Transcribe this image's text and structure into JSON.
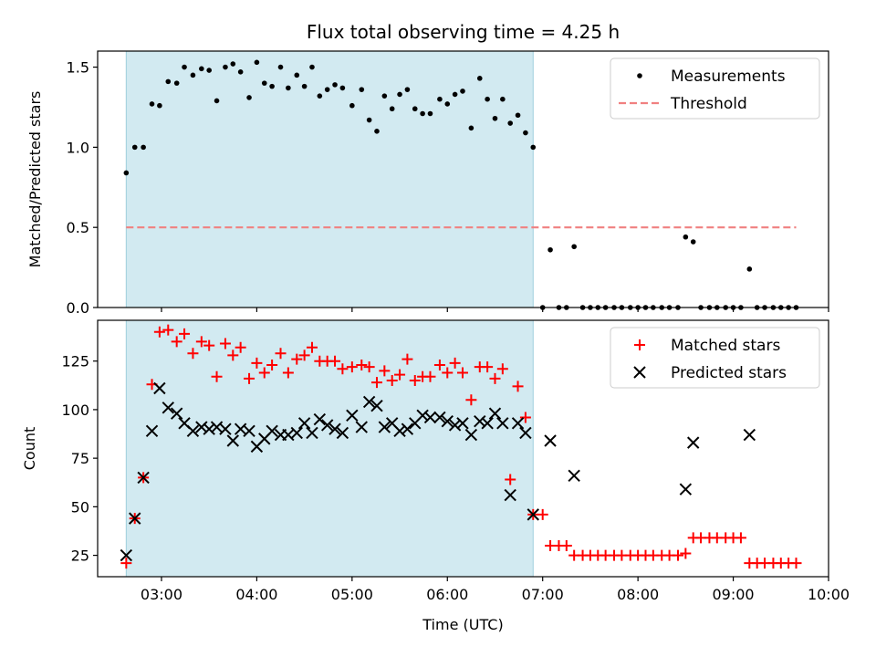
{
  "title": "Flux total observing time = 4.25 h",
  "chart_data": [
    {
      "type": "scatter",
      "ylabel": "Matched/Predicted stars",
      "xlabel": "",
      "ylim": [
        0,
        1.6
      ],
      "yticks": [
        0.0,
        0.5,
        1.0,
        1.5
      ],
      "ytick_labels": [
        "0.0",
        "0.5",
        "1.0",
        "1.5"
      ],
      "legend": "top-right",
      "shaded_span": [
        2.63,
        6.9
      ],
      "shade_color": "#add8e6",
      "series": [
        {
          "name": "Measurements",
          "marker": "dot",
          "color": "#000000",
          "x": [
            2.63,
            2.72,
            2.81,
            2.9,
            2.98,
            3.07,
            3.16,
            3.24,
            3.33,
            3.42,
            3.5,
            3.58,
            3.67,
            3.75,
            3.83,
            3.92,
            4.0,
            4.08,
            4.16,
            4.25,
            4.33,
            4.42,
            4.5,
            4.58,
            4.66,
            4.74,
            4.82,
            4.9,
            5.0,
            5.1,
            5.18,
            5.26,
            5.34,
            5.42,
            5.5,
            5.58,
            5.66,
            5.74,
            5.82,
            5.92,
            6.0,
            6.08,
            6.16,
            6.25,
            6.34,
            6.42,
            6.5,
            6.58,
            6.66,
            6.74,
            6.82,
            6.9,
            7.0,
            7.08,
            7.17,
            7.25,
            7.33,
            7.42,
            7.5,
            7.58,
            7.66,
            7.75,
            7.83,
            7.92,
            8.0,
            8.08,
            8.16,
            8.25,
            8.33,
            8.42,
            8.5,
            8.58,
            8.66,
            8.75,
            8.83,
            8.92,
            9.0,
            9.08,
            9.17,
            9.25,
            9.33,
            9.42,
            9.5,
            9.58,
            9.66
          ],
          "y": [
            0.84,
            1.0,
            1.0,
            1.27,
            1.26,
            1.41,
            1.4,
            1.5,
            1.45,
            1.49,
            1.48,
            1.29,
            1.5,
            1.52,
            1.47,
            1.31,
            1.53,
            1.4,
            1.38,
            1.5,
            1.37,
            1.45,
            1.38,
            1.5,
            1.32,
            1.36,
            1.39,
            1.37,
            1.26,
            1.36,
            1.17,
            1.1,
            1.32,
            1.24,
            1.33,
            1.36,
            1.24,
            1.21,
            1.21,
            1.3,
            1.27,
            1.33,
            1.35,
            1.12,
            1.43,
            1.3,
            1.18,
            1.3,
            1.15,
            1.2,
            1.09,
            1.0,
            0.0,
            0.36,
            0.0,
            0.0,
            0.38,
            0.0,
            0.0,
            0.0,
            0.0,
            0.0,
            0.0,
            0.0,
            0.0,
            0.0,
            0.0,
            0.0,
            0.0,
            0.0,
            0.44,
            0.41,
            0.0,
            0.0,
            0.0,
            0.0,
            0.0,
            0.0,
            0.24,
            0.0,
            0.0,
            0.0,
            0.0,
            0.0,
            0.0
          ]
        },
        {
          "name": "Threshold",
          "marker": "dashed-line",
          "color": "#f08080",
          "x": [
            2.63,
            9.66
          ],
          "y": [
            0.5,
            0.5
          ]
        }
      ]
    },
    {
      "type": "scatter",
      "ylabel": "Count",
      "xlabel": "Time (UTC)",
      "ylim": [
        14,
        146
      ],
      "xlim": [
        2.33,
        10.0
      ],
      "yticks": [
        25,
        50,
        75,
        100,
        125
      ],
      "ytick_labels": [
        "25",
        "50",
        "75",
        "100",
        "125"
      ],
      "xticks": [
        3,
        4,
        5,
        6,
        7,
        8,
        9,
        10
      ],
      "xtick_labels": [
        "03:00",
        "04:00",
        "05:00",
        "06:00",
        "07:00",
        "08:00",
        "09:00",
        "10:00"
      ],
      "legend": "top-right",
      "shaded_span": [
        2.63,
        6.9
      ],
      "shade_color": "#add8e6",
      "series": [
        {
          "name": "Matched stars",
          "marker": "plus",
          "color": "#ff0000",
          "x": [
            2.63,
            2.72,
            2.81,
            2.9,
            2.98,
            3.07,
            3.16,
            3.24,
            3.33,
            3.42,
            3.5,
            3.58,
            3.67,
            3.75,
            3.83,
            3.92,
            4.0,
            4.08,
            4.16,
            4.25,
            4.33,
            4.42,
            4.5,
            4.58,
            4.66,
            4.74,
            4.82,
            4.9,
            5.0,
            5.1,
            5.18,
            5.26,
            5.34,
            5.42,
            5.5,
            5.58,
            5.66,
            5.74,
            5.82,
            5.92,
            6.0,
            6.08,
            6.16,
            6.25,
            6.34,
            6.42,
            6.5,
            6.58,
            6.66,
            6.74,
            6.82,
            6.9,
            7.0,
            7.08,
            7.17,
            7.25,
            7.33,
            7.42,
            7.5,
            7.58,
            7.66,
            7.75,
            7.83,
            7.92,
            8.0,
            8.08,
            8.16,
            8.25,
            8.33,
            8.42,
            8.5,
            8.58,
            8.66,
            8.75,
            8.83,
            8.92,
            9.0,
            9.08,
            9.17,
            9.25,
            9.33,
            9.42,
            9.5,
            9.58,
            9.66
          ],
          "y": [
            21,
            44,
            65,
            113,
            140,
            141,
            135,
            139,
            129,
            135,
            133,
            117,
            134,
            128,
            132,
            116,
            124,
            119,
            123,
            129,
            119,
            126,
            128,
            132,
            125,
            125,
            125,
            121,
            122,
            123,
            122,
            114,
            120,
            115,
            118,
            126,
            115,
            117,
            117,
            123,
            119,
            124,
            119,
            105,
            122,
            122,
            116,
            121,
            64,
            112,
            96,
            46,
            46,
            30,
            30,
            30,
            25,
            25,
            25,
            25,
            25,
            25,
            25,
            25,
            25,
            25,
            25,
            25,
            25,
            25,
            26,
            34,
            34,
            34,
            34,
            34,
            34,
            34,
            21,
            21,
            21,
            21,
            21,
            21,
            21
          ]
        },
        {
          "name": "Predicted stars",
          "marker": "x",
          "color": "#000000",
          "x": [
            2.63,
            2.72,
            2.81,
            2.9,
            2.98,
            3.07,
            3.16,
            3.24,
            3.33,
            3.42,
            3.5,
            3.58,
            3.67,
            3.75,
            3.83,
            3.92,
            4.0,
            4.08,
            4.16,
            4.25,
            4.33,
            4.42,
            4.5,
            4.58,
            4.66,
            4.74,
            4.82,
            4.9,
            5.0,
            5.1,
            5.18,
            5.26,
            5.34,
            5.42,
            5.5,
            5.58,
            5.66,
            5.74,
            5.82,
            5.92,
            6.0,
            6.08,
            6.16,
            6.25,
            6.34,
            6.42,
            6.5,
            6.58,
            6.66,
            6.74,
            6.82,
            6.9,
            7.08,
            7.33,
            8.5,
            8.58,
            9.17
          ],
          "y": [
            25,
            44,
            65,
            89,
            111,
            101,
            98,
            93,
            89,
            91,
            90,
            91,
            90,
            84,
            90,
            89,
            81,
            85,
            89,
            87,
            87,
            88,
            93,
            88,
            95,
            92,
            90,
            88,
            97,
            91,
            104,
            102,
            91,
            93,
            89,
            90,
            93,
            97,
            96,
            96,
            94,
            92,
            93,
            87,
            94,
            93,
            98,
            93,
            56,
            93,
            88,
            46,
            84,
            66,
            59,
            83,
            87
          ]
        }
      ]
    }
  ]
}
